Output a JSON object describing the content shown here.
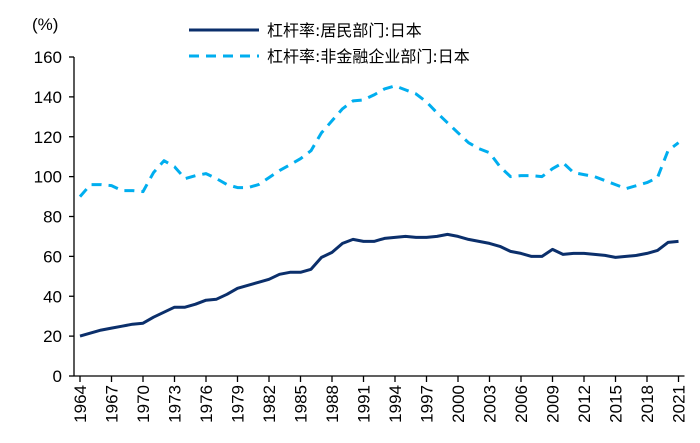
{
  "chart_data": {
    "type": "line",
    "unit_label": "(%)",
    "ylim": [
      0,
      160
    ],
    "yticks": [
      0,
      20,
      40,
      60,
      80,
      100,
      120,
      140,
      160
    ],
    "xticks": [
      1964,
      1967,
      1970,
      1973,
      1976,
      1979,
      1982,
      1985,
      1988,
      1991,
      1994,
      1997,
      2000,
      2003,
      2006,
      2009,
      2012,
      2015,
      2018,
      2021
    ],
    "x": [
      1964,
      1965,
      1966,
      1967,
      1968,
      1969,
      1970,
      1971,
      1972,
      1973,
      1974,
      1975,
      1976,
      1977,
      1978,
      1979,
      1980,
      1981,
      1982,
      1983,
      1984,
      1985,
      1986,
      1987,
      1988,
      1989,
      1990,
      1991,
      1992,
      1993,
      1994,
      1995,
      1996,
      1997,
      1998,
      1999,
      2000,
      2001,
      2002,
      2003,
      2004,
      2005,
      2006,
      2007,
      2008,
      2009,
      2010,
      2011,
      2012,
      2013,
      2014,
      2015,
      2016,
      2017,
      2018,
      2019,
      2020,
      2021
    ],
    "grid": false,
    "legend_position": "top",
    "series": [
      {
        "name": "杠杆率:居民部门:日本",
        "color": "#0B2F6B",
        "style": "solid",
        "values": [
          20,
          21.5,
          23,
          24,
          25,
          26,
          26.5,
          29.5,
          32,
          34.5,
          34.5,
          36,
          38,
          38.5,
          41,
          44,
          45.5,
          47,
          48.5,
          51,
          52,
          52,
          53.5,
          59.5,
          62,
          66.5,
          68.5,
          67.5,
          67.5,
          69,
          69.5,
          70,
          69.5,
          69.5,
          70,
          71,
          70,
          68.5,
          67.5,
          66.5,
          65,
          62.5,
          61.5,
          60,
          60,
          63.5,
          61,
          61.5,
          61.5,
          61,
          60.5,
          59.5,
          60,
          60.5,
          61.5,
          63,
          67,
          67.5
        ]
      },
      {
        "name": "杠杆率:非金融企业部门:日本",
        "color": "#00AEEF",
        "style": "dashed",
        "values": [
          90,
          96,
          96,
          95.5,
          93,
          93,
          92.5,
          102,
          108,
          105,
          99,
          100.5,
          101.5,
          99,
          96,
          94.5,
          94.5,
          96,
          99.5,
          103,
          106,
          109,
          113,
          122,
          128,
          134,
          138,
          138.5,
          141,
          144,
          145.5,
          143.5,
          141.5,
          137.5,
          132,
          127,
          122,
          117,
          114,
          112,
          105,
          100,
          100.5,
          100.5,
          100,
          104,
          107,
          102,
          101,
          100,
          98,
          96,
          94,
          95.5,
          97,
          99.5,
          113,
          117
        ]
      }
    ]
  }
}
